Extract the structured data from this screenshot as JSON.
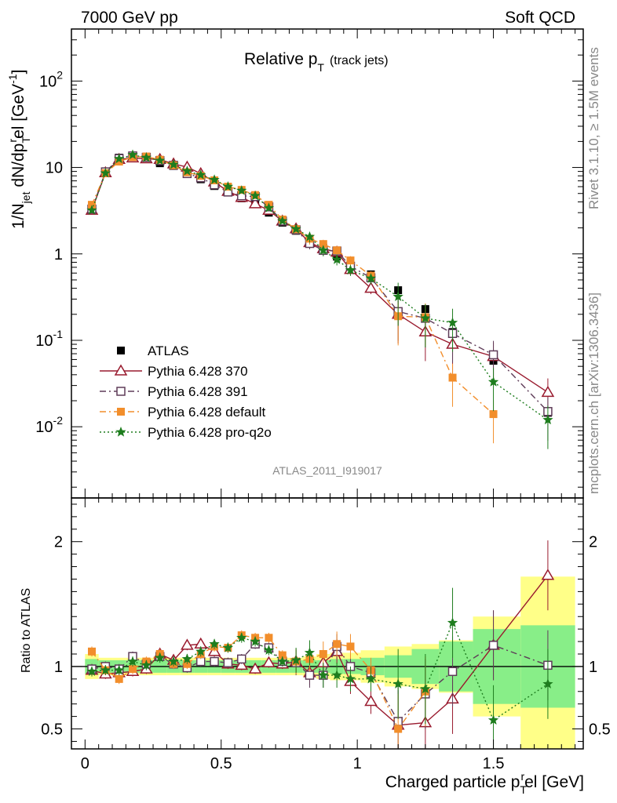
{
  "header": {
    "left": "7000 GeV pp",
    "right": "Soft QCD"
  },
  "side_labels": {
    "rivet": "Rivet 3.1.10, ≥ 1.5M events",
    "mcplots": "mcplots.cern.ch [arXiv:1306.3436]"
  },
  "watermark": "ATLAS_2011_I919017",
  "chart_data": [
    {
      "type": "scatter",
      "panel": "main",
      "title": "Relative p_T (track jets)",
      "title_parts": {
        "main": "Relative p",
        "sub": "T",
        "note": "(track jets)"
      },
      "ylabel": "1/N_jet dN/dp_T^rel [GeV^-1]",
      "ylabel_parts": {
        "a": "1/N",
        "a_sub": "jet",
        "b": " dN/dp",
        "b_sub": "T",
        "b_sup": "r",
        "c": "el [GeV",
        "c_sup": "-1",
        "d": "]"
      },
      "yscale": "log",
      "ylim": [
        0.0015,
        400
      ],
      "xlim": [
        -0.05,
        1.83
      ],
      "ytick_labels": [
        {
          "value": 0.01,
          "base": "10",
          "exp": "-2"
        },
        {
          "value": 0.1,
          "base": "10",
          "exp": "-1"
        },
        {
          "value": 1,
          "base": "1",
          "exp": ""
        },
        {
          "value": 10,
          "base": "10",
          "exp": ""
        },
        {
          "value": 100,
          "base": "10",
          "exp": "2"
        }
      ],
      "legend_position": "bottom-left",
      "x": [
        0.025,
        0.075,
        0.125,
        0.175,
        0.225,
        0.275,
        0.325,
        0.375,
        0.425,
        0.475,
        0.525,
        0.575,
        0.625,
        0.675,
        0.725,
        0.775,
        0.825,
        0.875,
        0.925,
        0.975,
        1.05,
        1.15,
        1.25,
        1.35,
        1.5,
        1.7
      ],
      "series": [
        {
          "name": "ATLAS",
          "color": "#000000",
          "marker": "filled-square",
          "line": "none",
          "values": [
            3.3,
            8.9,
            13.0,
            13.5,
            12.9,
            11.2,
            10.4,
            8.6,
            7.3,
            6.1,
            5.2,
            4.4,
            3.9,
            3.0,
            2.3,
            1.85,
            1.42,
            1.18,
            0.93,
            0.72,
            0.58,
            0.38,
            0.23,
            0.125,
            0.058,
            0.0145
          ]
        },
        {
          "name": "Pythia 6.428 370",
          "color": "#991a2e",
          "marker": "open-triangle",
          "line": "solid",
          "values": [
            3.2,
            8.7,
            12.4,
            12.9,
            12.6,
            12.4,
            11.0,
            10.1,
            8.5,
            6.8,
            5.3,
            4.5,
            3.8,
            3.2,
            2.4,
            1.95,
            1.35,
            1.15,
            1.05,
            0.66,
            0.4,
            0.2,
            0.125,
            0.09,
            0.065,
            0.025
          ]
        },
        {
          "name": "Pythia 6.428 391",
          "color": "#5e3c58",
          "marker": "open-square",
          "line": "dashdot",
          "values": [
            3.3,
            8.9,
            12.7,
            13.6,
            13.1,
            12.0,
            10.6,
            8.5,
            7.6,
            6.3,
            5.2,
            4.7,
            4.6,
            3.5,
            2.4,
            1.9,
            1.32,
            1.1,
            1.08,
            0.72,
            0.53,
            0.215,
            0.18,
            0.12,
            0.068,
            0.015
          ]
        },
        {
          "name": "Pythia 6.428 default",
          "color": "#f28e2b",
          "marker": "filled-square",
          "line": "dashdot",
          "values": [
            3.7,
            8.6,
            11.7,
            13.2,
            13.4,
            12.3,
            10.6,
            8.8,
            8.0,
            7.1,
            6.0,
            5.5,
            4.8,
            3.7,
            2.5,
            1.93,
            1.5,
            1.3,
            1.1,
            0.84,
            0.56,
            0.19,
            0.185,
            0.037,
            0.014,
            null
          ]
        },
        {
          "name": "Pythia 6.428 pro-q2o",
          "color": "#1e7d1e",
          "marker": "star",
          "line": "dotted",
          "values": [
            3.2,
            8.6,
            12.6,
            14.0,
            13.0,
            12.0,
            10.8,
            9.1,
            8.2,
            7.2,
            6.0,
            5.4,
            4.7,
            3.4,
            2.4,
            1.94,
            1.58,
            1.1,
            0.86,
            0.65,
            0.52,
            0.32,
            0.18,
            0.16,
            0.033,
            0.012
          ]
        }
      ]
    },
    {
      "type": "scatter",
      "panel": "ratio",
      "xlabel": "Charged particle p_T^rel [GeV]",
      "xlabel_parts": {
        "a": "Charged particle p",
        "sub": "T",
        "sup": "r",
        "b": "el [GeV]"
      },
      "ylabel": "Ratio to ATLAS",
      "ylim": [
        0.34,
        2.35
      ],
      "xlim": [
        -0.05,
        1.83
      ],
      "yticks": [
        0.5,
        1,
        2
      ],
      "ytick_labels": [
        "0.5",
        "1",
        "2"
      ],
      "xticks": [
        0,
        0.5,
        1,
        1.5
      ],
      "xtick_labels": [
        "0",
        "0.5",
        "1",
        "1.5"
      ],
      "band_inner": [
        0.06,
        0.05,
        0.05,
        0.05,
        0.05,
        0.05,
        0.05,
        0.05,
        0.05,
        0.05,
        0.05,
        0.05,
        0.05,
        0.05,
        0.05,
        0.05,
        0.05,
        0.05,
        0.06,
        0.06,
        0.07,
        0.09,
        0.14,
        0.2,
        0.3,
        0.33
      ],
      "band_outer": [
        0.1,
        0.07,
        0.07,
        0.07,
        0.07,
        0.07,
        0.07,
        0.07,
        0.07,
        0.07,
        0.07,
        0.07,
        0.07,
        0.07,
        0.07,
        0.07,
        0.08,
        0.1,
        0.11,
        0.11,
        0.13,
        0.16,
        0.18,
        0.21,
        0.4,
        0.72
      ],
      "x": [
        0.025,
        0.075,
        0.125,
        0.175,
        0.225,
        0.275,
        0.325,
        0.375,
        0.425,
        0.475,
        0.525,
        0.575,
        0.625,
        0.675,
        0.725,
        0.775,
        0.825,
        0.875,
        0.925,
        0.975,
        1.05,
        1.15,
        1.25,
        1.35,
        1.5,
        1.7
      ],
      "series": [
        {
          "name": "Pythia 6.428 370",
          "color": "#991a2e",
          "marker": "open-triangle",
          "line": "solid",
          "values": [
            0.97,
            0.94,
            0.95,
            0.96,
            0.98,
            1.1,
            1.05,
            1.17,
            1.18,
            1.12,
            1.02,
            1.01,
            0.98,
            1.03,
            1.02,
            1.04,
            0.95,
            1.03,
            1.12,
            0.88,
            0.72,
            0.53,
            0.55,
            0.74,
            1.17,
            1.73
          ]
        },
        {
          "name": "Pythia 6.428 391",
          "color": "#5e3c58",
          "marker": "open-square",
          "line": "dashdot",
          "values": [
            0.98,
            1.0,
            0.98,
            1.08,
            1.02,
            1.08,
            1.02,
            0.99,
            1.04,
            1.04,
            1.03,
            1.06,
            1.18,
            1.15,
            1.04,
            1.03,
            0.93,
            0.93,
            1.16,
            1.0,
            0.95,
            0.56,
            0.78,
            0.96,
            1.17,
            1.01
          ]
        },
        {
          "name": "Pythia 6.428 default",
          "color": "#f28e2b",
          "marker": "filled-square",
          "line": "dashdot",
          "values": [
            1.12,
            0.97,
            0.9,
            0.98,
            1.04,
            1.1,
            1.02,
            1.02,
            1.1,
            1.16,
            1.15,
            1.25,
            1.23,
            1.23,
            1.09,
            1.04,
            1.06,
            1.1,
            1.18,
            1.16,
            0.97,
            0.5,
            0.8,
            null,
            null,
            null
          ]
        },
        {
          "name": "Pythia 6.428 pro-q2o",
          "color": "#1e7d1e",
          "marker": "star",
          "line": "dotted",
          "values": [
            0.96,
            0.97,
            0.97,
            1.04,
            1.01,
            1.07,
            1.04,
            1.06,
            1.12,
            1.18,
            1.15,
            1.23,
            1.2,
            1.13,
            1.04,
            1.05,
            1.11,
            0.93,
            0.93,
            0.9,
            0.9,
            0.86,
            0.82,
            1.35,
            0.57,
            0.86
          ]
        }
      ]
    }
  ]
}
